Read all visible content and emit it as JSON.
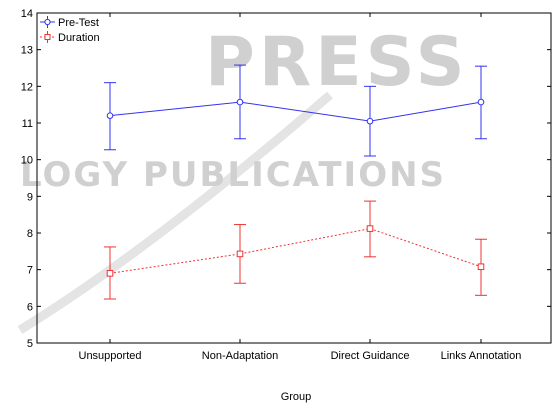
{
  "watermark": {
    "line1": "PRESS",
    "line2": "LOGY PUBLICATIONS",
    "color": "#d0d0d0"
  },
  "chart_data": {
    "type": "line",
    "xlabel": "Group",
    "ylabel": "",
    "categories": [
      "Unsupported",
      "Non-Adaptation",
      "Direct Guidance",
      "Links Annotation"
    ],
    "ylim": [
      5,
      14
    ],
    "yticks": [
      5,
      6,
      7,
      8,
      9,
      10,
      11,
      12,
      13,
      14
    ],
    "grid": false,
    "legend_position": "top-left",
    "series": [
      {
        "name": "Pre-Test",
        "color": "#3333ee",
        "marker": "circle",
        "line_style": "solid",
        "values": [
          11.2,
          11.57,
          11.05,
          11.57
        ],
        "err_low": [
          10.27,
          10.57,
          10.1,
          10.57
        ],
        "err_high": [
          12.1,
          12.58,
          12.0,
          12.55
        ]
      },
      {
        "name": "Duration",
        "color": "#ee3333",
        "marker": "square",
        "line_style": "dotted",
        "values": [
          6.9,
          7.43,
          8.12,
          7.08
        ],
        "err_low": [
          6.2,
          6.63,
          7.35,
          6.3
        ],
        "err_high": [
          7.62,
          8.23,
          8.87,
          7.83
        ]
      }
    ]
  }
}
